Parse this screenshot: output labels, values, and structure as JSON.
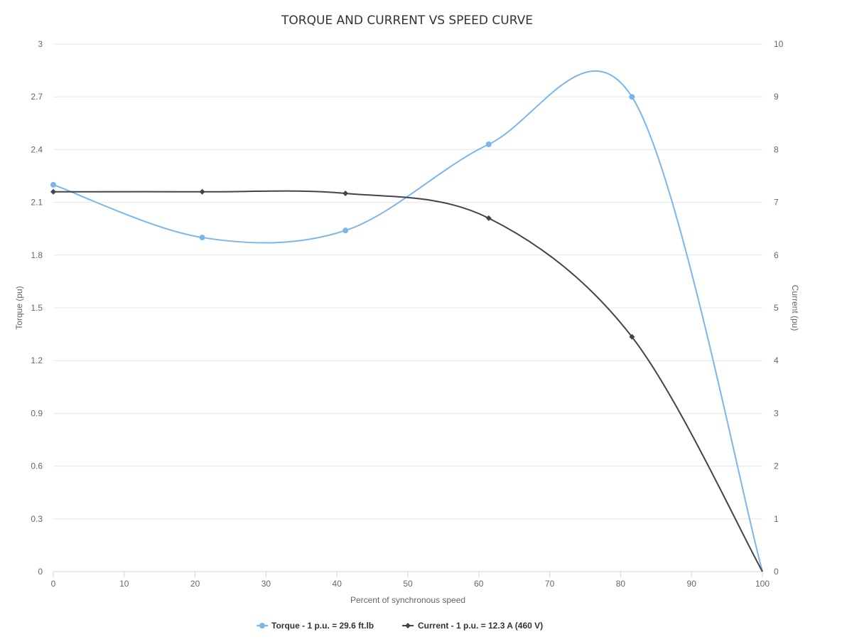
{
  "chart_data": {
    "type": "line",
    "title": "TORQUE AND CURRENT VS SPEED CURVE",
    "xlabel": "Percent of synchronous speed",
    "ylabel_left": "Torque (pu)",
    "ylabel_right": "Current (pu)",
    "xlim": [
      0,
      100
    ],
    "ylim_left": [
      0,
      3
    ],
    "ylim_right": [
      0,
      10
    ],
    "x_ticks": [
      "0",
      "10",
      "20",
      "30",
      "40",
      "50",
      "60",
      "70",
      "80",
      "90",
      "100"
    ],
    "y_left_ticks": [
      "0",
      "0.3",
      "0.6",
      "0.9",
      "1.2",
      "1.5",
      "1.8",
      "2.1",
      "2.4",
      "2.7",
      "3"
    ],
    "y_right_ticks": [
      "0",
      "1",
      "2",
      "3",
      "4",
      "5",
      "6",
      "7",
      "8",
      "9",
      "10"
    ],
    "grid": true,
    "legend_position": "bottom-center",
    "series": [
      {
        "name": "Torque - 1 p.u. = 29.6 ft.lb",
        "axis": "left",
        "color": "#7cb5ec",
        "marker": "circle",
        "x": [
          0,
          21,
          41.2,
          61.4,
          81.6,
          100
        ],
        "values": [
          2.2,
          1.9,
          1.94,
          2.43,
          2.7,
          0
        ]
      },
      {
        "name": "Current - 1 p.u. = 12.3 A (460 V)",
        "axis": "right",
        "color": "#434348",
        "marker": "diamond",
        "x": [
          0,
          21,
          41.2,
          61.4,
          81.6,
          100
        ],
        "values": [
          7.2,
          7.2,
          7.17,
          6.7,
          4.45,
          0
        ]
      }
    ]
  }
}
